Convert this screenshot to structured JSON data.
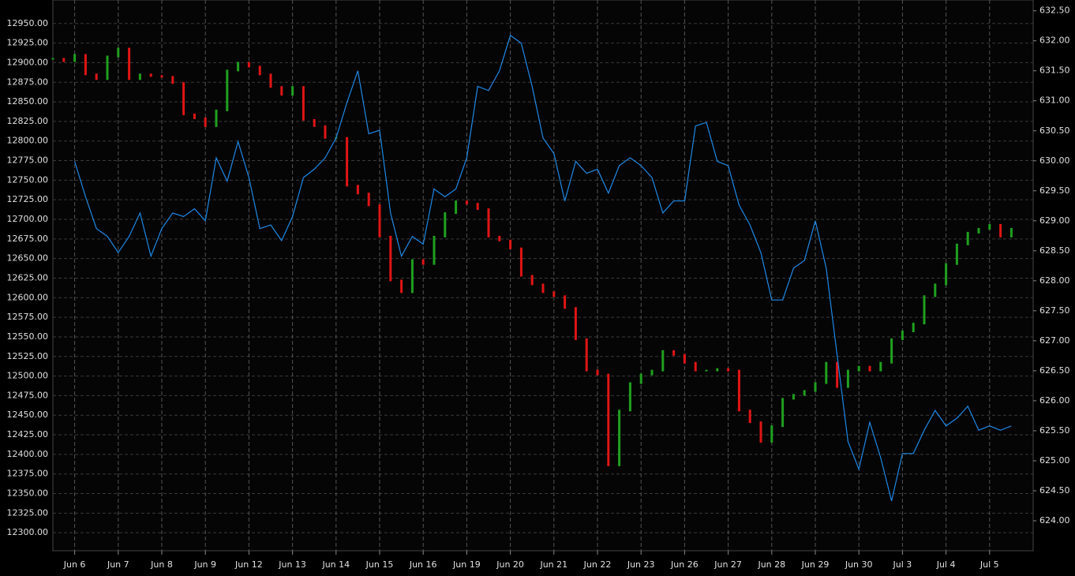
{
  "chart_data": {
    "type": "candlestick",
    "grid": true,
    "xlim": [
      -0.5,
      22
    ],
    "xticks": [
      {
        "value": 0,
        "label": "Jun 6"
      },
      {
        "value": 1,
        "label": "Jun 7"
      },
      {
        "value": 2,
        "label": "Jun 8"
      },
      {
        "value": 3,
        "label": "Jun 9"
      },
      {
        "value": 4,
        "label": "Jun 12"
      },
      {
        "value": 5,
        "label": "Jun 13"
      },
      {
        "value": 6,
        "label": "Jun 14"
      },
      {
        "value": 7,
        "label": "Jun 15"
      },
      {
        "value": 8,
        "label": "Jun 16"
      },
      {
        "value": 9,
        "label": "Jun 19"
      },
      {
        "value": 10,
        "label": "Jun 20"
      },
      {
        "value": 11,
        "label": "Jun 21"
      },
      {
        "value": 12,
        "label": "Jun 22"
      },
      {
        "value": 13,
        "label": "Jun 23"
      },
      {
        "value": 14,
        "label": "Jun 26"
      },
      {
        "value": 15,
        "label": "Jun 27"
      },
      {
        "value": 16,
        "label": "Jun 28"
      },
      {
        "value": 17,
        "label": "Jun 29"
      },
      {
        "value": 18,
        "label": "Jun 30"
      },
      {
        "value": 19,
        "label": "Jul 3"
      },
      {
        "value": 20,
        "label": "Jul 4"
      },
      {
        "value": 21,
        "label": "Jul 5"
      }
    ],
    "ylim": [
      12277,
      12980
    ],
    "yticks": [
      {
        "value": 12300,
        "label": "12300.00"
      },
      {
        "value": 12325,
        "label": "12325.00"
      },
      {
        "value": 12350,
        "label": "12350.00"
      },
      {
        "value": 12375,
        "label": "12375.00"
      },
      {
        "value": 12400,
        "label": "12400.00"
      },
      {
        "value": 12425,
        "label": "12425.00"
      },
      {
        "value": 12450,
        "label": "12450.00"
      },
      {
        "value": 12475,
        "label": "12475.00"
      },
      {
        "value": 12500,
        "label": "12500.00"
      },
      {
        "value": 12525,
        "label": "12525.00"
      },
      {
        "value": 12550,
        "label": "12550.00"
      },
      {
        "value": 12575,
        "label": "12575.00"
      },
      {
        "value": 12600,
        "label": "12600.00"
      },
      {
        "value": 12625,
        "label": "12625.00"
      },
      {
        "value": 12650,
        "label": "12650.00"
      },
      {
        "value": 12675,
        "label": "12675.00"
      },
      {
        "value": 12700,
        "label": "12700.00"
      },
      {
        "value": 12725,
        "label": "12725.00"
      },
      {
        "value": 12750,
        "label": "12750.00"
      },
      {
        "value": 12775,
        "label": "12775.00"
      },
      {
        "value": 12800,
        "label": "12800.00"
      },
      {
        "value": 12825,
        "label": "12825.00"
      },
      {
        "value": 12850,
        "label": "12850.00"
      },
      {
        "value": 12875,
        "label": "12875.00"
      },
      {
        "value": 12900,
        "label": "12900.00"
      },
      {
        "value": 12925,
        "label": "12925.00"
      },
      {
        "value": 12950,
        "label": "12950.00"
      }
    ],
    "y2lim": [
      623.5,
      632.68
    ],
    "y2ticks": [
      {
        "value": 624,
        "label": "624.00"
      },
      {
        "value": 624.5,
        "label": "624.50"
      },
      {
        "value": 625,
        "label": "625.00"
      },
      {
        "value": 625.5,
        "label": "625.50"
      },
      {
        "value": 626,
        "label": "626.00"
      },
      {
        "value": 626.5,
        "label": "626.50"
      },
      {
        "value": 627,
        "label": "627.00"
      },
      {
        "value": 627.5,
        "label": "627.50"
      },
      {
        "value": 628,
        "label": "628.00"
      },
      {
        "value": 628.5,
        "label": "628.50"
      },
      {
        "value": 629,
        "label": "629.00"
      },
      {
        "value": 629.5,
        "label": "629.50"
      },
      {
        "value": 630,
        "label": "630.00"
      },
      {
        "value": 630.5,
        "label": "630.50"
      },
      {
        "value": 631,
        "label": "631.00"
      },
      {
        "value": 631.5,
        "label": "631.50"
      },
      {
        "value": 632,
        "label": "632.00"
      },
      {
        "value": 632.5,
        "label": "632.50"
      }
    ],
    "series": [
      {
        "color_up": "#1fa01f",
        "color_down": "#e01515",
        "x": [
          -0.5,
          -0.25,
          0,
          0.25,
          0.5,
          0.75,
          1,
          1.25,
          1.5,
          1.75,
          2,
          2.25,
          2.5,
          2.75,
          3,
          3.25,
          3.5,
          3.75,
          4,
          4.25,
          4.5,
          4.75,
          5,
          5.25,
          5.5,
          5.75,
          6,
          6.25,
          6.5,
          6.75,
          7,
          7.25,
          7.5,
          7.75,
          8,
          8.25,
          8.5,
          8.75,
          9,
          9.25,
          9.5,
          9.75,
          10,
          10.25,
          10.5,
          10.75,
          11,
          11.25,
          11.5,
          11.75,
          12,
          12.25,
          12.5,
          12.75,
          13,
          13.25,
          13.5,
          13.75,
          14,
          14.25,
          14.5,
          14.75,
          15,
          15.25,
          15.5,
          15.75,
          16,
          16.25,
          16.5,
          16.75,
          17,
          17.25,
          17.5,
          17.75,
          18,
          18.25,
          18.5,
          18.75,
          19,
          19.25,
          19.5,
          19.75,
          20,
          20.25,
          20.5,
          20.75,
          21,
          21.25,
          21.5
        ],
        "values": [
          12905,
          12902,
          12910,
          12885,
          12879,
          12908,
          12918,
          12879,
          12885,
          12883,
          12882,
          12874,
          12834,
          12829,
          12819,
          12839,
          12890,
          12900,
          12895,
          12885,
          12869,
          12859,
          12869,
          12827,
          12819,
          12804,
          12804,
          12743,
          12733,
          12718,
          12678,
          12622,
          12607,
          12648,
          12643,
          12678,
          12708,
          12723,
          12720,
          12713,
          12678,
          12673,
          12663,
          12628,
          12617,
          12607,
          12602,
          12587,
          12547,
          12507,
          12502,
          12386,
          12456,
          12491,
          12502,
          12507,
          12532,
          12527,
          12517,
          12507,
          12507,
          12509,
          12507,
          12456,
          12441,
          12416,
          12436,
          12471,
          12476,
          12481,
          12491,
          12517,
          12486,
          12507,
          12512,
          12507,
          12517,
          12547,
          12557,
          12567,
          12602,
          12617,
          12643,
          12668,
          12683,
          12688,
          12693,
          12678,
          12688
        ]
      },
      {
        "color": "#1e88e5",
        "axis": "y2",
        "x": [
          0,
          0.25,
          0.5,
          0.75,
          1,
          1.25,
          1.5,
          1.75,
          2,
          2.25,
          2.5,
          2.75,
          3,
          3.25,
          3.5,
          3.75,
          4,
          4.25,
          4.5,
          4.75,
          5,
          5.25,
          5.5,
          5.75,
          6,
          6.25,
          6.5,
          6.75,
          7,
          7.25,
          7.5,
          7.75,
          8,
          8.25,
          8.5,
          8.75,
          9,
          9.25,
          9.5,
          9.75,
          10,
          10.25,
          10.5,
          10.75,
          11,
          11.25,
          11.5,
          11.75,
          12,
          12.25,
          12.5,
          12.75,
          13,
          13.25,
          13.5,
          13.75,
          14,
          14.25,
          14.5,
          14.75,
          15,
          15.25,
          15.5,
          15.75,
          16,
          16.25,
          16.5,
          16.75,
          17,
          17.25,
          17.5,
          17.75,
          18,
          18.25,
          18.5,
          18.75,
          19,
          19.25,
          19.5,
          19.75,
          20,
          20.25,
          20.5,
          20.75,
          21,
          21.25,
          21.5
        ],
        "values": [
          629.99,
          629.4,
          628.87,
          628.74,
          628.47,
          628.74,
          629.13,
          628.41,
          628.87,
          629.13,
          629.07,
          629.2,
          629.0,
          630.05,
          629.66,
          630.32,
          629.72,
          628.87,
          628.93,
          628.67,
          629.07,
          629.72,
          629.86,
          630.05,
          630.38,
          630.97,
          631.5,
          630.45,
          630.51,
          629.13,
          628.41,
          628.74,
          628.61,
          629.53,
          629.4,
          629.53,
          630.05,
          631.24,
          631.17,
          631.5,
          632.09,
          631.96,
          631.24,
          630.38,
          630.12,
          629.33,
          629.99,
          629.79,
          629.86,
          629.46,
          629.92,
          630.05,
          629.92,
          629.72,
          629.13,
          629.33,
          629.33,
          630.58,
          630.64,
          629.99,
          629.92,
          629.26,
          628.93,
          628.47,
          627.68,
          627.68,
          628.21,
          628.34,
          629.0,
          628.21,
          626.76,
          625.32,
          624.86,
          625.64,
          625.05,
          624.33,
          625.12,
          625.12,
          625.51,
          625.84,
          625.58,
          625.71,
          625.91,
          625.51,
          625.58,
          625.51,
          625.58
        ]
      }
    ]
  }
}
